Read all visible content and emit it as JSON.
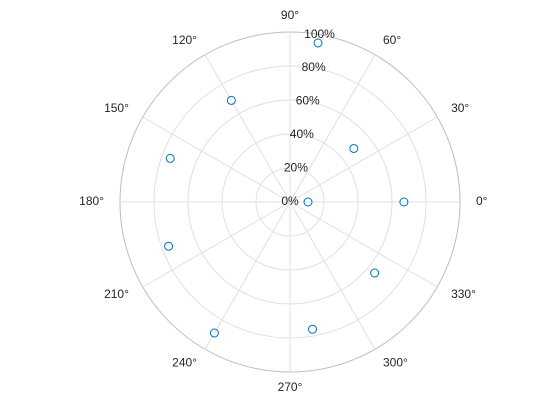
{
  "chart_data": {
    "type": "polar-scatter",
    "x": [
      0,
      40,
      80,
      120,
      160,
      200,
      240,
      280,
      320,
      360
    ],
    "values": [
      67,
      49,
      95,
      69,
      75,
      76,
      89,
      76,
      65,
      10.6
    ],
    "color": "#0072bd",
    "rlim": [
      0,
      100
    ],
    "rticks": [
      {
        "value": 0,
        "label": "0%"
      },
      {
        "value": 20,
        "label": "20%"
      },
      {
        "value": 40,
        "label": "40%"
      },
      {
        "value": 60,
        "label": "60%"
      },
      {
        "value": 80,
        "label": "80%"
      },
      {
        "value": 100,
        "label": "100%"
      }
    ],
    "thetaticks": [
      {
        "value": 0,
        "label": "0°"
      },
      {
        "value": 30,
        "label": "30°"
      },
      {
        "value": 60,
        "label": "60°"
      },
      {
        "value": 90,
        "label": "90°"
      },
      {
        "value": 120,
        "label": "120°"
      },
      {
        "value": 150,
        "label": "150°"
      },
      {
        "value": 180,
        "label": "180°"
      },
      {
        "value": 210,
        "label": "210°"
      },
      {
        "value": 240,
        "label": "240°"
      },
      {
        "value": 270,
        "label": "270°"
      },
      {
        "value": 300,
        "label": "300°"
      },
      {
        "value": 330,
        "label": "330°"
      }
    ],
    "grid": true
  }
}
